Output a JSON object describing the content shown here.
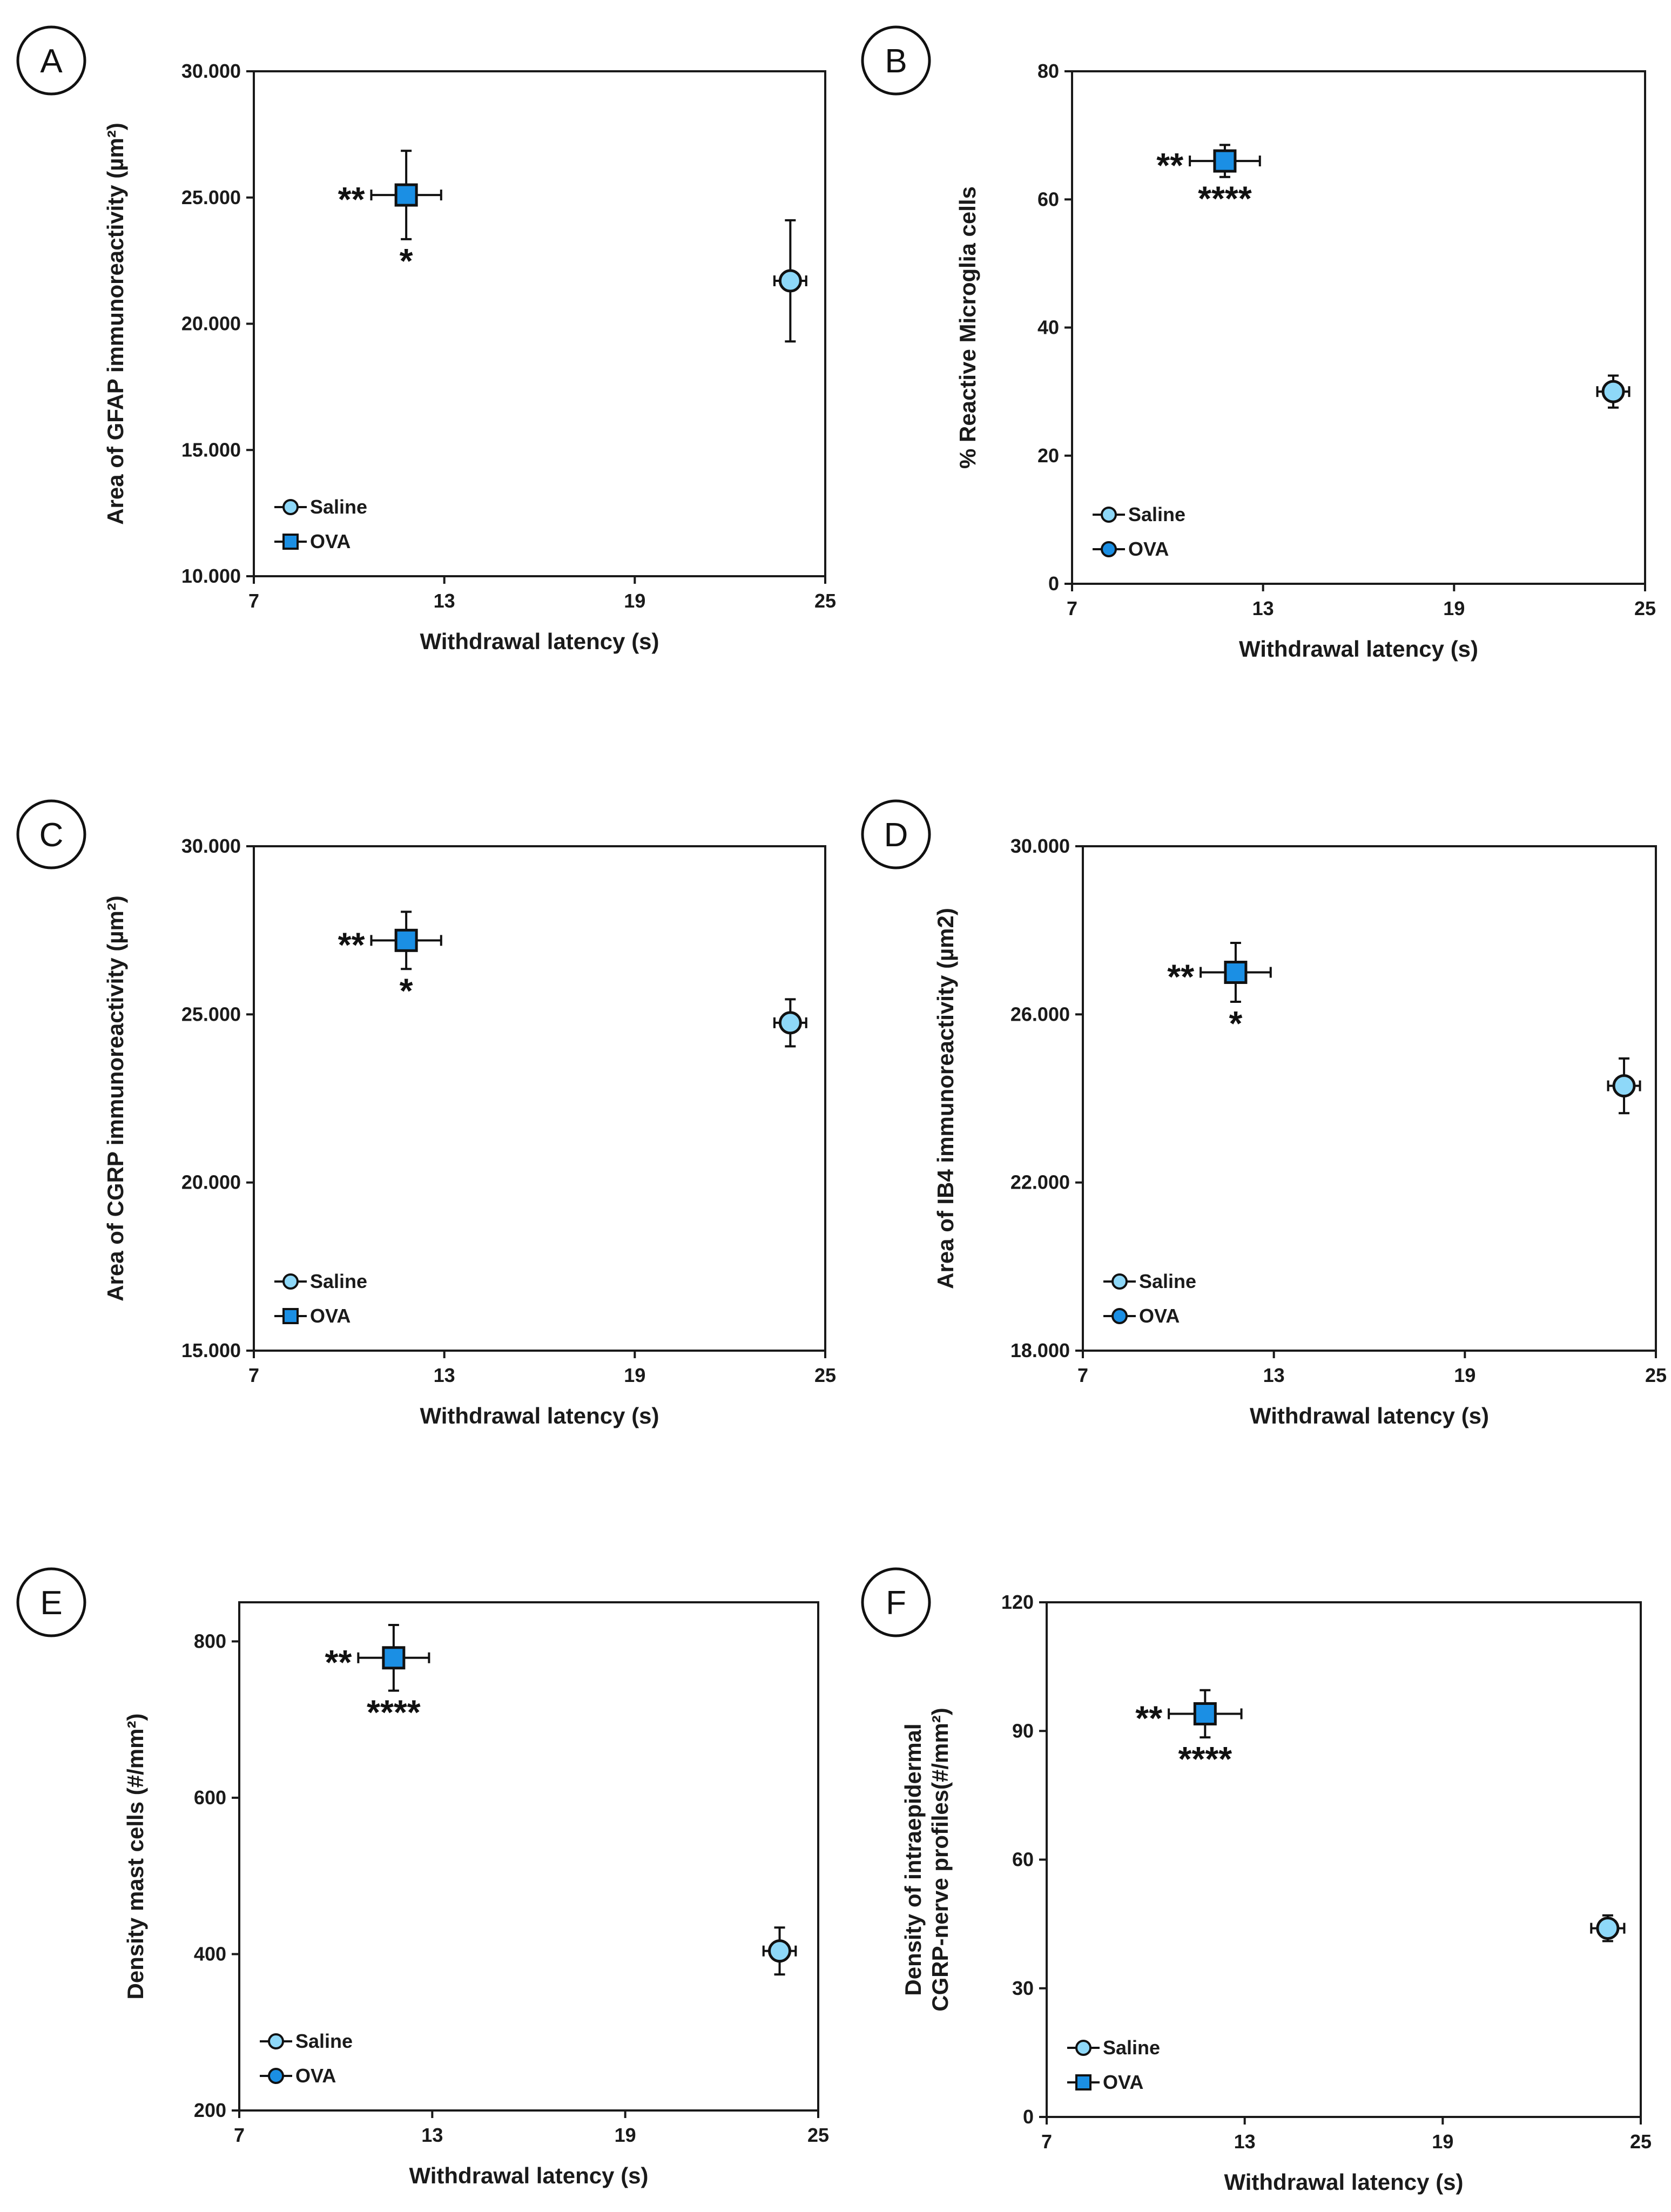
{
  "colors": {
    "saline": "#8ed8f8",
    "ova": "#1b8fe4",
    "axis": "#1a1a1a"
  },
  "chart_data": [
    {
      "panel": "A",
      "type": "scatter",
      "xlabel": "Withdrawal latency (s)",
      "ylabel": "Area of GFAP immunoreactivity (µm²)",
      "xlim": [
        7,
        25
      ],
      "ylim": [
        10,
        30
      ],
      "xticks": [
        7,
        13,
        19,
        25
      ],
      "xtick_labels": [
        "7",
        "13",
        "19",
        "25"
      ],
      "yticks": [
        10,
        15,
        20,
        25,
        30
      ],
      "ytick_labels": [
        "10.000",
        "15.000",
        "20.000",
        "25.000",
        "30.000"
      ],
      "series": [
        {
          "name": "Saline",
          "marker": "circle",
          "x": 23.9,
          "y": 21.7,
          "xerr": 0.5,
          "yerr": 2.4
        },
        {
          "name": "OVA",
          "marker": "square",
          "x": 11.8,
          "y": 25.1,
          "xerr": 1.1,
          "yerr": 1.75
        }
      ],
      "legend_markers": [
        "circle",
        "square"
      ],
      "sig_left": "**",
      "sig_below": "*"
    },
    {
      "panel": "B",
      "type": "scatter",
      "xlabel": "Withdrawal latency (s)",
      "ylabel": "% Reactive Microglia cells",
      "xlim": [
        7,
        25
      ],
      "ylim": [
        0,
        80
      ],
      "xticks": [
        7,
        13,
        19,
        25
      ],
      "xtick_labels": [
        "7",
        "13",
        "19",
        "25"
      ],
      "yticks": [
        0,
        20,
        40,
        60,
        80
      ],
      "ytick_labels": [
        "0",
        "20",
        "40",
        "60",
        "80"
      ],
      "series": [
        {
          "name": "Saline",
          "marker": "circle",
          "x": 24.0,
          "y": 30,
          "xerr": 0.5,
          "yerr": 2.5
        },
        {
          "name": "OVA",
          "marker": "square",
          "x": 11.8,
          "y": 66,
          "xerr": 1.1,
          "yerr": 2.5
        }
      ],
      "legend_markers": [
        "circle",
        "circle"
      ],
      "sig_left": "**",
      "sig_below": "****"
    },
    {
      "panel": "C",
      "type": "scatter",
      "xlabel": "Withdrawal latency (s)",
      "ylabel": "Area of CGRP immunoreactivity (µm²)",
      "xlim": [
        7,
        25
      ],
      "ylim": [
        15,
        30
      ],
      "xticks": [
        7,
        13,
        19,
        25
      ],
      "xtick_labels": [
        "7",
        "13",
        "19",
        "25"
      ],
      "yticks": [
        15,
        20,
        25,
        30
      ],
      "ytick_labels": [
        "15.000",
        "20.000",
        "25.000",
        "30.000"
      ],
      "series": [
        {
          "name": "Saline",
          "marker": "circle",
          "x": 23.9,
          "y": 24.75,
          "xerr": 0.5,
          "yerr": 0.7
        },
        {
          "name": "OVA",
          "marker": "square",
          "x": 11.8,
          "y": 27.2,
          "xerr": 1.1,
          "yerr": 0.85
        }
      ],
      "legend_markers": [
        "circle",
        "square"
      ],
      "sig_left": "**",
      "sig_below": "*"
    },
    {
      "panel": "D",
      "type": "scatter",
      "xlabel": "Withdrawal latency (s)",
      "ylabel": "Area of IB4  immunoreactivity (µm2)",
      "xlim": [
        7,
        25
      ],
      "ylim": [
        18,
        30
      ],
      "xticks": [
        7,
        13,
        19,
        25
      ],
      "xtick_labels": [
        "7",
        "13",
        "19",
        "25"
      ],
      "yticks": [
        18,
        22,
        26,
        30
      ],
      "ytick_labels": [
        "18.000",
        "22.000",
        "26.000",
        "30.000"
      ],
      "series": [
        {
          "name": "Saline",
          "marker": "circle",
          "x": 24.0,
          "y": 24.3,
          "xerr": 0.5,
          "yerr": 0.65
        },
        {
          "name": "OVA",
          "marker": "square",
          "x": 11.8,
          "y": 27.0,
          "xerr": 1.1,
          "yerr": 0.7
        }
      ],
      "legend_markers": [
        "circle",
        "circle"
      ],
      "sig_left": "**",
      "sig_below": "*"
    },
    {
      "panel": "E",
      "type": "scatter",
      "xlabel": "Withdrawal latency (s)",
      "ylabel": "Density mast cells (#/mm²)",
      "xlim": [
        7,
        25
      ],
      "ylim": [
        200,
        850
      ],
      "xticks": [
        7,
        13,
        19,
        25
      ],
      "xtick_labels": [
        "7",
        "13",
        "19",
        "25"
      ],
      "yticks": [
        200,
        400,
        600,
        800
      ],
      "ytick_labels": [
        "200",
        "400",
        "600",
        "800"
      ],
      "series": [
        {
          "name": "Saline",
          "marker": "circle",
          "x": 23.8,
          "y": 404,
          "xerr": 0.5,
          "yerr": 30
        },
        {
          "name": "OVA",
          "marker": "square",
          "x": 11.8,
          "y": 779,
          "xerr": 1.1,
          "yerr": 42
        }
      ],
      "legend_markers": [
        "circle",
        "circle"
      ],
      "sig_left": "**",
      "sig_below": "****"
    },
    {
      "panel": "F",
      "type": "scatter",
      "xlabel": "Withdrawal latency (s)",
      "ylabel": [
        "Density of intraepidermal",
        "CGRP-nerve profiles(#/mm²)"
      ],
      "xlim": [
        7,
        25
      ],
      "ylim": [
        0,
        120
      ],
      "xticks": [
        7,
        13,
        19,
        25
      ],
      "xtick_labels": [
        "7",
        "13",
        "19",
        "25"
      ],
      "yticks": [
        0,
        30,
        60,
        90,
        120
      ],
      "ytick_labels": [
        "0",
        "30",
        "60",
        "90",
        "120"
      ],
      "series": [
        {
          "name": "Saline",
          "marker": "circle",
          "x": 24.0,
          "y": 44,
          "xerr": 0.5,
          "yerr": 3
        },
        {
          "name": "OVA",
          "marker": "square",
          "x": 11.8,
          "y": 94,
          "xerr": 1.1,
          "yerr": 5.5
        }
      ],
      "legend_markers": [
        "circle",
        "square"
      ],
      "sig_left": "**",
      "sig_below": "****"
    }
  ]
}
